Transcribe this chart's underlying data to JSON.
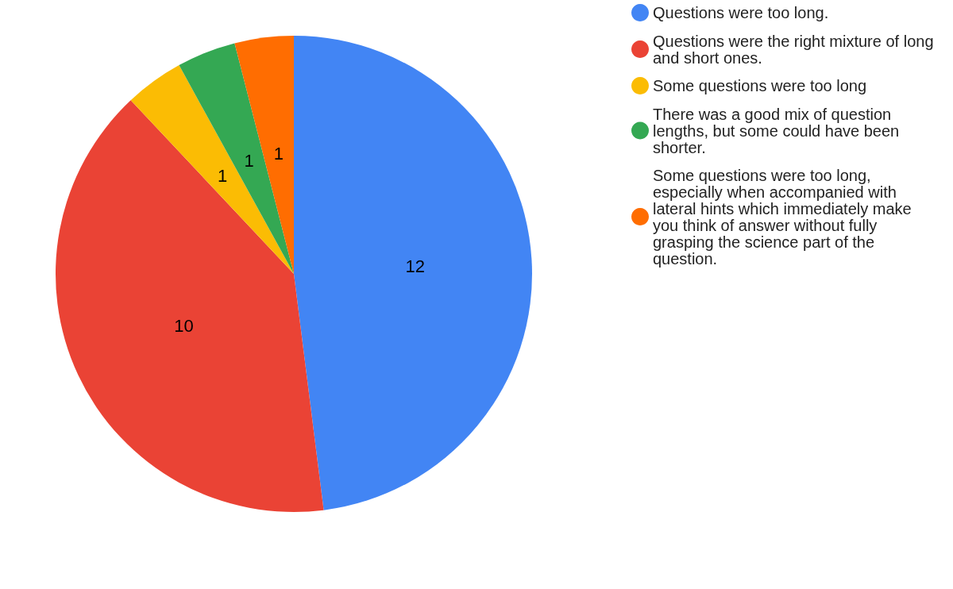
{
  "chart_data": {
    "type": "pie",
    "categories": [
      "Questions were too long.",
      "Questions were the right mixture of long and short ones.",
      "Some questions were too long",
      "There was a good mix of question lengths, but some could have been shorter.",
      "Some questions were too long, especially when accompanied with lateral hints which immediately make you think of answer without fully grasping the science part of the question."
    ],
    "values": [
      12,
      10,
      1,
      1,
      1
    ],
    "colors": [
      "#4285f4",
      "#ea4335",
      "#fbbc04",
      "#34a853",
      "#ff6d01"
    ],
    "data_labels": true,
    "legend": "top right"
  }
}
